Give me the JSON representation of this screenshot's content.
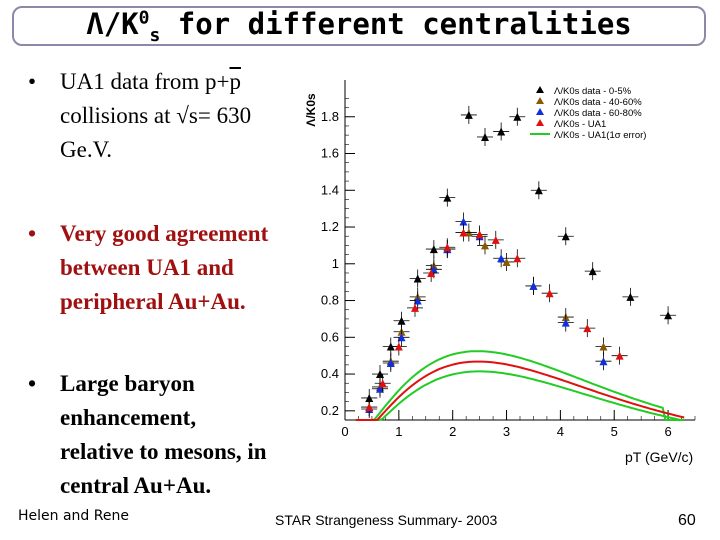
{
  "slide": {
    "title_prefix": "Λ/K",
    "title_sup": "0",
    "title_sub": "s",
    "title_suffix": " for different centralities",
    "bullets": [
      {
        "lines": [
          "UA1 data from  p+p",
          "collisions at √s= 630",
          "Ge.V."
        ],
        "overline_char": "p"
      },
      {
        "lines": [
          "Very good agreement",
          "between UA1 and",
          "peripheral Au+Au."
        ]
      },
      {
        "lines": [
          "Large baryon",
          "enhancement,",
          "relative to mesons, in",
          "central Au+Au."
        ]
      }
    ],
    "bullet_char": "•",
    "footer_left": "Helen and Rene",
    "footer_center": "STAR Strangeness Summary- 2003",
    "page_number": "60"
  },
  "chart_data": {
    "type": "scatter",
    "xlabel": "pT (GeV/c)",
    "ylabel": "Λ/K0s",
    "xlim": [
      0,
      6.5
    ],
    "ylim": [
      0.15,
      2.0
    ],
    "x_ticks": [
      0,
      1,
      2,
      3,
      4,
      5,
      6
    ],
    "y_ticks": [
      0.2,
      0.4,
      0.6,
      0.8,
      1,
      1.2,
      1.4,
      1.6,
      1.8
    ],
    "y_tick_labels": [
      "0.2",
      "0.4",
      "0.6",
      "0.8",
      "1",
      "1.2",
      "1.4",
      "1.6",
      "1.8"
    ],
    "grid": false,
    "legend_position": "top-right",
    "colors": {
      "black": "#000000",
      "brown": "#8b5a00",
      "blue": "#1030e0",
      "red": "#e01010",
      "green": "#22cc22"
    },
    "series": [
      {
        "name": "Λ/K0s data - 0-5%",
        "marker": "triangle",
        "color_key": "black",
        "points": [
          [
            0.45,
            0.27
          ],
          [
            0.65,
            0.4
          ],
          [
            0.85,
            0.55
          ],
          [
            1.05,
            0.69
          ],
          [
            1.35,
            0.92
          ],
          [
            1.65,
            1.08
          ],
          [
            1.9,
            1.36
          ],
          [
            2.3,
            1.81
          ],
          [
            2.6,
            1.69
          ],
          [
            2.9,
            1.72
          ],
          [
            3.2,
            1.8
          ],
          [
            3.6,
            1.4
          ],
          [
            4.1,
            1.15
          ],
          [
            4.6,
            0.96
          ],
          [
            5.3,
            0.82
          ],
          [
            6.0,
            0.72
          ]
        ]
      },
      {
        "name": "Λ/K0s data - 40-60%",
        "marker": "triangle",
        "color_key": "brown",
        "points": [
          [
            0.45,
            0.22
          ],
          [
            0.65,
            0.33
          ],
          [
            0.85,
            0.47
          ],
          [
            1.05,
            0.63
          ],
          [
            1.35,
            0.82
          ],
          [
            1.65,
            0.99
          ],
          [
            1.9,
            1.08
          ],
          [
            2.3,
            1.17
          ],
          [
            2.6,
            1.1
          ],
          [
            3.0,
            1.01
          ],
          [
            3.5,
            0.88
          ],
          [
            4.1,
            0.71
          ],
          [
            4.8,
            0.55
          ]
        ]
      },
      {
        "name": "Λ/K0s data - 60-80%",
        "marker": "triangle",
        "color_key": "blue",
        "points": [
          [
            0.45,
            0.21
          ],
          [
            0.65,
            0.32
          ],
          [
            0.85,
            0.46
          ],
          [
            1.05,
            0.6
          ],
          [
            1.35,
            0.8
          ],
          [
            1.65,
            0.97
          ],
          [
            1.9,
            1.08
          ],
          [
            2.2,
            1.23
          ],
          [
            2.5,
            1.15
          ],
          [
            2.9,
            1.03
          ],
          [
            3.5,
            0.88
          ],
          [
            4.1,
            0.68
          ],
          [
            4.8,
            0.47
          ]
        ]
      },
      {
        "name": "Λ/K0s - UA1",
        "marker": "triangle",
        "color_key": "red",
        "points": [
          [
            0.45,
            0.22
          ],
          [
            0.7,
            0.35
          ],
          [
            1.0,
            0.55
          ],
          [
            1.3,
            0.76
          ],
          [
            1.6,
            0.95
          ],
          [
            1.9,
            1.09
          ],
          [
            2.2,
            1.17
          ],
          [
            2.5,
            1.16
          ],
          [
            2.8,
            1.13
          ],
          [
            3.2,
            1.03
          ],
          [
            3.8,
            0.84
          ],
          [
            4.5,
            0.65
          ],
          [
            5.1,
            0.5
          ]
        ]
      },
      {
        "name": "Λ/K0s - UA1(1σ error)",
        "marker": "line",
        "color_key": "green"
      }
    ]
  }
}
